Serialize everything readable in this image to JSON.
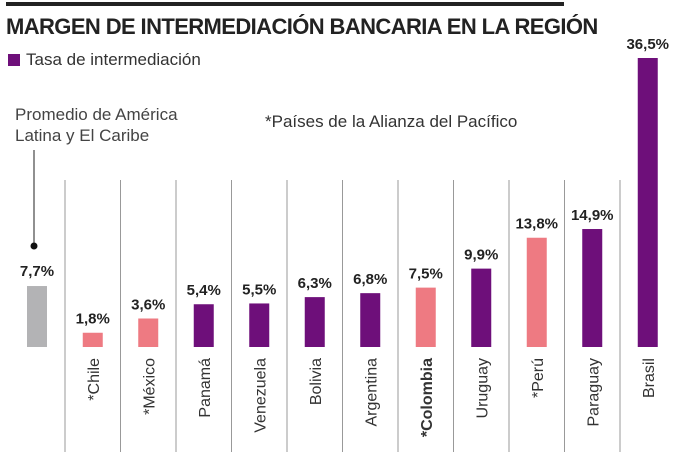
{
  "title": "MARGEN DE INTERMEDIACIÓN BANCARIA EN LA REGIÓN",
  "legend": {
    "label": "Tasa de intermediación",
    "color": "#6e0f7a"
  },
  "average": {
    "label_line1": "Promedio de América",
    "label_line2": "Latina y El Caribe",
    "value": 7.7,
    "value_label": "7,7%",
    "color": "#b3b3b5"
  },
  "note": "*Países de la Alianza del Pacífico",
  "colors": {
    "main": "#6e0f7a",
    "pacific_alliance": "#ee7a82",
    "average": "#b3b3b5"
  },
  "chart_data": {
    "type": "bar",
    "categories": [
      "*Chile",
      "*México",
      "Panamá",
      "Venezuela",
      "Bolivia",
      "Argentina",
      "*Colombia",
      "Uruguay",
      "*Perú",
      "Paraguay",
      "Brasil"
    ],
    "values": [
      1.8,
      3.6,
      5.4,
      5.5,
      6.3,
      6.8,
      7.5,
      9.9,
      13.8,
      14.9,
      36.5
    ],
    "value_labels": [
      "1,8%",
      "3,6%",
      "5,4%",
      "5,5%",
      "6,3%",
      "6,8%",
      "7,5%",
      "9,9%",
      "13,8%",
      "14,9%",
      "36,5%"
    ],
    "pacific_alliance": [
      true,
      true,
      false,
      false,
      false,
      false,
      true,
      false,
      true,
      false,
      false
    ],
    "highlighted": "*Colombia",
    "series": [
      {
        "name": "Tasa de intermediación",
        "values": [
          1.8,
          3.6,
          5.4,
          5.5,
          6.3,
          6.8,
          7.5,
          9.9,
          13.8,
          14.9,
          36.5
        ]
      }
    ],
    "title": "MARGEN DE INTERMEDIACIÓN BANCARIA EN LA REGIÓN",
    "xlabel": "",
    "ylabel": "",
    "ylim": [
      0,
      36.5
    ],
    "grid": false,
    "legend_position": "top-left"
  }
}
